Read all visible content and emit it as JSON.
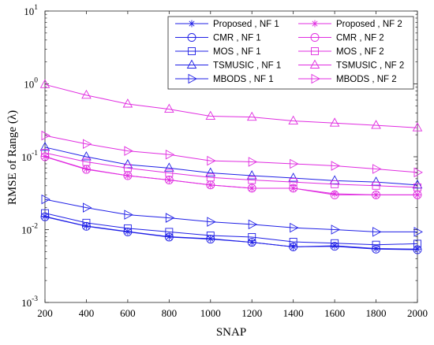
{
  "chart_data": {
    "type": "line",
    "xlabel": "SNAP",
    "ylabel": "RMSE  of  Range (λ)",
    "y_scale": "log",
    "xlim": [
      200,
      2000
    ],
    "ylim": [
      0.001,
      10
    ],
    "x_ticks": [
      "200",
      "400",
      "600",
      "800",
      "1000",
      "1200",
      "1400",
      "1600",
      "1800",
      "2000"
    ],
    "y_ticks": [
      {
        "value": 10,
        "base": "10",
        "exp": "1"
      },
      {
        "value": 1,
        "base": "10",
        "exp": "0"
      },
      {
        "value": 0.1,
        "base": "10",
        "exp": "-1"
      },
      {
        "value": 0.01,
        "base": "10",
        "exp": "-2"
      },
      {
        "value": 0.001,
        "base": "10",
        "exp": "-3"
      }
    ],
    "grid": false,
    "legend_position": "top-right",
    "x": [
      200,
      400,
      600,
      800,
      1000,
      1200,
      1400,
      1600,
      1800,
      2000
    ],
    "series": [
      {
        "name": "Proposed , NF 1",
        "color": "#1f1fe6",
        "marker": "asterisk",
        "values": [
          0.0152,
          0.0112,
          0.0094,
          0.008,
          0.0075,
          0.0067,
          0.0058,
          0.006,
          0.0055,
          0.0054
        ]
      },
      {
        "name": "CMR , NF 1",
        "color": "#1f1fe6",
        "marker": "circle",
        "values": [
          0.015,
          0.0111,
          0.0093,
          0.0079,
          0.0074,
          0.0067,
          0.0058,
          0.0059,
          0.0054,
          0.0053
        ]
      },
      {
        "name": "MOS , NF 1",
        "color": "#1f1fe6",
        "marker": "square",
        "values": [
          0.0168,
          0.0124,
          0.0104,
          0.0093,
          0.0083,
          0.0079,
          0.0068,
          0.0065,
          0.0062,
          0.0064
        ]
      },
      {
        "name": "TSMUSIC , NF 1",
        "color": "#1f1fe6",
        "marker": "triangle-up",
        "values": [
          0.135,
          0.1,
          0.078,
          0.07,
          0.06,
          0.055,
          0.051,
          0.047,
          0.045,
          0.041
        ]
      },
      {
        "name": "MBODS , NF 1",
        "color": "#1f1fe6",
        "marker": "triangle-right",
        "values": [
          0.026,
          0.02,
          0.016,
          0.0145,
          0.0128,
          0.0118,
          0.0106,
          0.01,
          0.0093,
          0.0093
        ]
      },
      {
        "name": "Proposed , NF 2",
        "color": "#e02ce0",
        "marker": "asterisk",
        "values": [
          0.101,
          0.068,
          0.055,
          0.048,
          0.041,
          0.037,
          0.037,
          0.031,
          0.03,
          0.03
        ]
      },
      {
        "name": "CMR , NF 2",
        "color": "#e02ce0",
        "marker": "circle",
        "values": [
          0.1,
          0.067,
          0.055,
          0.048,
          0.041,
          0.037,
          0.037,
          0.03,
          0.03,
          0.03
        ]
      },
      {
        "name": "MOS , NF 2",
        "color": "#e02ce0",
        "marker": "square",
        "values": [
          0.113,
          0.085,
          0.07,
          0.06,
          0.052,
          0.048,
          0.045,
          0.042,
          0.04,
          0.038
        ]
      },
      {
        "name": "TSMUSIC , NF 2",
        "color": "#e02ce0",
        "marker": "triangle-up",
        "values": [
          0.98,
          0.7,
          0.53,
          0.45,
          0.36,
          0.35,
          0.31,
          0.29,
          0.27,
          0.25
        ]
      },
      {
        "name": "MBODS , NF 2",
        "color": "#e02ce0",
        "marker": "triangle-right",
        "values": [
          0.195,
          0.15,
          0.12,
          0.107,
          0.088,
          0.085,
          0.08,
          0.075,
          0.068,
          0.061
        ]
      }
    ]
  }
}
